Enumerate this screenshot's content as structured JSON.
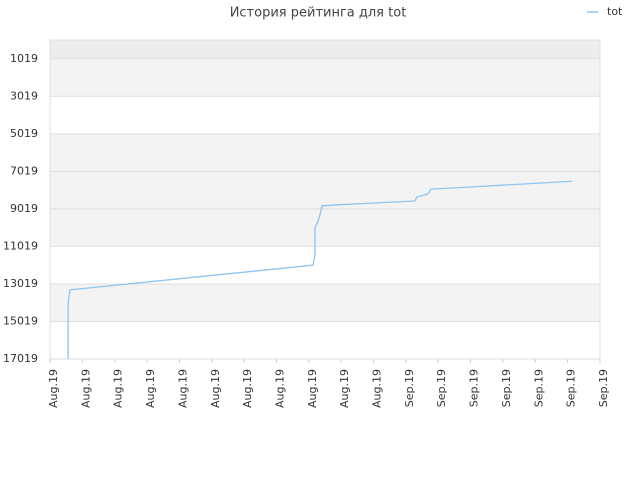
{
  "chart_data": {
    "type": "line",
    "title": "История рейтинга для tot",
    "series": [
      {
        "name": "tot",
        "color": "#8ec4f0",
        "x": [
          0.56,
          0.56,
          0.62,
          8.13,
          8.19,
          8.19,
          8.28,
          8.35,
          8.41,
          8.81,
          11.28,
          11.34,
          11.68,
          11.78,
          12.36,
          16.14
        ],
        "values": [
          17019,
          14072,
          13335,
          12019,
          11440,
          10019,
          9703,
          9282,
          8861,
          8808,
          8598,
          8387,
          8229,
          7966,
          7914,
          7545
        ]
      }
    ],
    "xlim": [
      0,
      17
    ],
    "xticks": [
      {
        "value": 0,
        "label": "Aug.19"
      },
      {
        "value": 1,
        "label": "Aug.19"
      },
      {
        "value": 2,
        "label": "Aug.19"
      },
      {
        "value": 3,
        "label": "Aug.19"
      },
      {
        "value": 4,
        "label": "Aug.19"
      },
      {
        "value": 5,
        "label": "Aug.19"
      },
      {
        "value": 6,
        "label": "Aug.19"
      },
      {
        "value": 7,
        "label": "Aug.19"
      },
      {
        "value": 8,
        "label": "Aug.19"
      },
      {
        "value": 9,
        "label": "Aug.19"
      },
      {
        "value": 10,
        "label": "Aug.19"
      },
      {
        "value": 11,
        "label": "Sep.19"
      },
      {
        "value": 12,
        "label": "Sep.19"
      },
      {
        "value": 13,
        "label": "Sep.19"
      },
      {
        "value": 14,
        "label": "Sep.19"
      },
      {
        "value": 15,
        "label": "Sep.19"
      },
      {
        "value": 16,
        "label": "Sep.19"
      },
      {
        "value": 17,
        "label": "Sep.19"
      }
    ],
    "ylim": [
      17019,
      19
    ],
    "yticks": [
      1019,
      3019,
      5019,
      7019,
      9019,
      11019,
      13019,
      15019,
      17019
    ],
    "grid": true,
    "legend": "top-right"
  }
}
